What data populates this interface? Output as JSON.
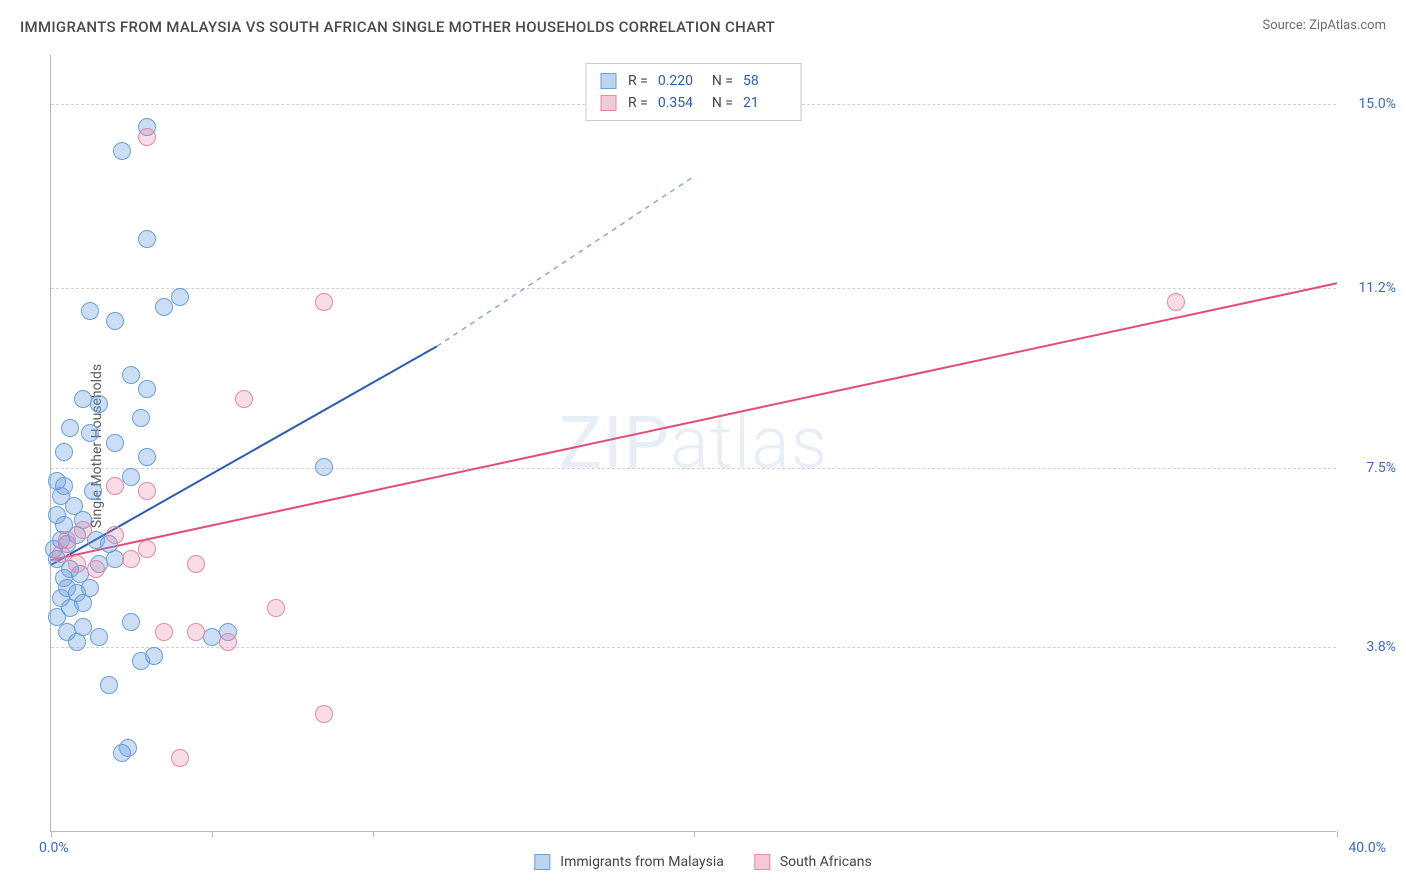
{
  "title": "IMMIGRANTS FROM MALAYSIA VS SOUTH AFRICAN SINGLE MOTHER HOUSEHOLDS CORRELATION CHART",
  "source_label": "Source: ZipAtlas.com",
  "watermark": "ZIPatlas",
  "y_axis_label": "Single Mother Households",
  "chart": {
    "type": "scatter",
    "xlim": [
      0,
      40
    ],
    "ylim": [
      0,
      16
    ],
    "y_gridlines": [
      3.8,
      7.5,
      11.2,
      15.0
    ],
    "y_tick_labels": [
      "3.8%",
      "7.5%",
      "11.2%",
      "15.0%"
    ],
    "x_ticks": [
      0,
      5,
      10,
      20,
      40
    ],
    "x_min_label": "0.0%",
    "x_max_label": "40.0%",
    "background_color": "#ffffff",
    "grid_color": "#d0d0d0",
    "axis_color": "#b8b8b8",
    "series": [
      {
        "name": "Immigrants from Malaysia",
        "color_fill": "rgba(110,160,225,0.35)",
        "color_stroke": "#6b9fd8",
        "swatch_fill": "#bcd4ef",
        "swatch_stroke": "#6b9fd8",
        "line_color": "#2d5bb0",
        "dash_color": "#8aa8d6",
        "marker_radius": 9,
        "R": "0.220",
        "N": "58",
        "trend": {
          "x1": 0,
          "y1": 5.5,
          "x2": 12,
          "y2": 10.0,
          "dash_to_x": 20,
          "dash_to_y": 13.5
        },
        "points": [
          [
            0.2,
            5.6
          ],
          [
            0.3,
            6.0
          ],
          [
            0.1,
            5.8
          ],
          [
            0.4,
            6.3
          ],
          [
            0.6,
            5.4
          ],
          [
            0.5,
            5.9
          ],
          [
            0.8,
            6.1
          ],
          [
            0.2,
            6.5
          ],
          [
            0.3,
            6.9
          ],
          [
            0.7,
            6.7
          ],
          [
            0.4,
            5.2
          ],
          [
            0.5,
            5.0
          ],
          [
            0.3,
            4.8
          ],
          [
            0.6,
            4.6
          ],
          [
            0.8,
            4.9
          ],
          [
            1.0,
            4.7
          ],
          [
            1.2,
            5.0
          ],
          [
            0.9,
            5.3
          ],
          [
            1.5,
            5.5
          ],
          [
            1.4,
            6.0
          ],
          [
            2.0,
            5.6
          ],
          [
            1.8,
            5.9
          ],
          [
            1.0,
            6.4
          ],
          [
            1.3,
            7.0
          ],
          [
            0.2,
            7.2
          ],
          [
            0.4,
            7.1
          ],
          [
            2.5,
            7.3
          ],
          [
            3.0,
            7.7
          ],
          [
            2.0,
            8.0
          ],
          [
            1.2,
            8.2
          ],
          [
            2.8,
            8.5
          ],
          [
            1.5,
            8.8
          ],
          [
            1.0,
            8.9
          ],
          [
            3.0,
            9.1
          ],
          [
            2.5,
            9.4
          ],
          [
            0.4,
            7.8
          ],
          [
            0.6,
            8.3
          ],
          [
            8.5,
            7.5
          ],
          [
            3.5,
            10.8
          ],
          [
            2.0,
            10.5
          ],
          [
            4.0,
            11.0
          ],
          [
            1.2,
            10.7
          ],
          [
            3.0,
            12.2
          ],
          [
            2.2,
            14.0
          ],
          [
            3.0,
            14.5
          ],
          [
            1.0,
            4.2
          ],
          [
            1.5,
            4.0
          ],
          [
            2.5,
            4.3
          ],
          [
            2.8,
            3.5
          ],
          [
            3.2,
            3.6
          ],
          [
            1.8,
            3.0
          ],
          [
            2.2,
            1.6
          ],
          [
            2.4,
            1.7
          ],
          [
            0.2,
            4.4
          ],
          [
            0.5,
            4.1
          ],
          [
            0.8,
            3.9
          ],
          [
            5.0,
            4.0
          ],
          [
            5.5,
            4.1
          ]
        ]
      },
      {
        "name": "South Africans",
        "color_fill": "rgba(235,140,170,0.30)",
        "color_stroke": "#e28aa8",
        "swatch_fill": "#f3c9d6",
        "swatch_stroke": "#e28aa8",
        "line_color": "#e34c76",
        "marker_radius": 9,
        "R": "0.354",
        "N": "21",
        "trend": {
          "x1": 0,
          "y1": 5.6,
          "x2": 40,
          "y2": 11.3
        },
        "points": [
          [
            0.3,
            5.7
          ],
          [
            0.5,
            6.0
          ],
          [
            0.8,
            5.5
          ],
          [
            1.0,
            6.2
          ],
          [
            1.4,
            5.4
          ],
          [
            2.0,
            6.1
          ],
          [
            2.5,
            5.6
          ],
          [
            3.0,
            5.8
          ],
          [
            3.0,
            7.0
          ],
          [
            2.0,
            7.1
          ],
          [
            4.5,
            5.5
          ],
          [
            6.0,
            8.9
          ],
          [
            8.5,
            10.9
          ],
          [
            35.0,
            10.9
          ],
          [
            3.5,
            4.1
          ],
          [
            4.5,
            4.1
          ],
          [
            5.5,
            3.9
          ],
          [
            7.0,
            4.6
          ],
          [
            8.5,
            2.4
          ],
          [
            4.0,
            1.5
          ],
          [
            3.0,
            14.3
          ]
        ]
      }
    ]
  },
  "legend_top_labels": {
    "R": "R =",
    "N": "N ="
  },
  "legend_bottom": [
    {
      "swatch_fill": "#bcd4ef",
      "swatch_stroke": "#6b9fd8",
      "label": "Immigrants from Malaysia"
    },
    {
      "swatch_fill": "#f3c9d6",
      "swatch_stroke": "#e28aa8",
      "label": "South Africans"
    }
  ]
}
